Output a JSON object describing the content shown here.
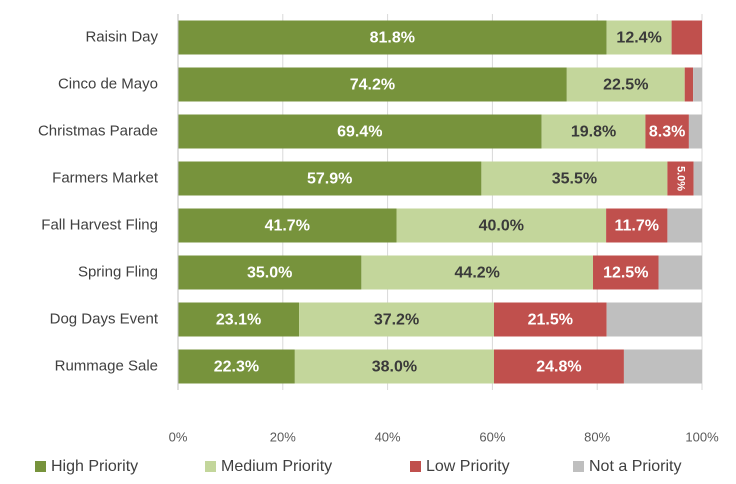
{
  "chart_data": {
    "type": "stacked-bar-horizontal",
    "categories": [
      "Raisin Day",
      "Cinco de Mayo",
      "Christmas Parade",
      "Farmers Market",
      "Fall Harvest Fling",
      "Spring Fling",
      "Dog Days Event",
      "Rummage Sale"
    ],
    "series": [
      {
        "name": "High Priority",
        "color": "#77933c",
        "values": [
          81.8,
          74.2,
          69.4,
          57.9,
          41.7,
          35.0,
          23.1,
          22.3
        ],
        "value_labels": [
          "81.8%",
          "74.2%",
          "69.4%",
          "57.9%",
          "41.7%",
          "35.0%",
          "23.1%",
          "22.3%"
        ]
      },
      {
        "name": "Medium Priority",
        "color": "#c3d69b",
        "values": [
          12.4,
          22.5,
          19.8,
          35.5,
          40.0,
          44.2,
          37.2,
          38.0
        ],
        "value_labels": [
          "12.4%",
          "22.5%",
          "19.8%",
          "35.5%",
          "40.0%",
          "44.2%",
          "37.2%",
          "38.0%"
        ]
      },
      {
        "name": "Low Priority",
        "color": "#c0504d",
        "values": [
          5.8,
          1.6,
          8.3,
          5.0,
          11.7,
          12.5,
          21.5,
          24.8
        ],
        "value_labels": [
          null,
          null,
          "8.3%",
          "5.0%",
          "11.7%",
          "12.5%",
          "21.5%",
          "24.8%"
        ]
      },
      {
        "name": "Not a Priority",
        "color": "#bfbfbf",
        "values": [
          0,
          1.7,
          2.5,
          1.6,
          6.6,
          8.3,
          18.2,
          14.9
        ],
        "value_labels": [
          null,
          null,
          null,
          null,
          null,
          null,
          null,
          null
        ]
      }
    ],
    "xlim": [
      0,
      100
    ],
    "xticks": [
      {
        "value": 0,
        "label": "0%"
      },
      {
        "value": 20,
        "label": "20%"
      },
      {
        "value": 40,
        "label": "40%"
      },
      {
        "value": 60,
        "label": "60%"
      },
      {
        "value": 80,
        "label": "80%"
      },
      {
        "value": 100,
        "label": "100%"
      }
    ],
    "grid": true,
    "legend": "bottom"
  }
}
